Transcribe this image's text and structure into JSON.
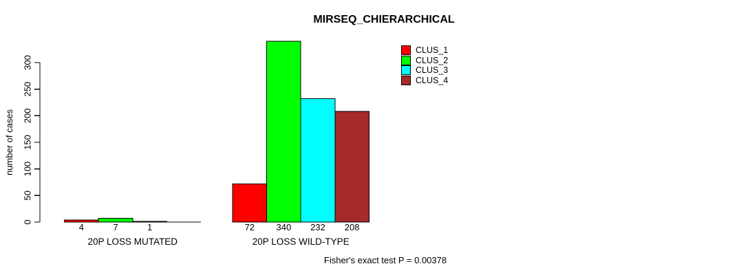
{
  "title": "MIRSEQ_CHIERARCHICAL",
  "footer": "Fisher's exact test P = 0.00378",
  "chart_data": {
    "type": "bar",
    "title": "MIRSEQ_CHIERARCHICAL",
    "ylabel": "number of cases",
    "xlabel": "",
    "ylim": [
      0,
      300
    ],
    "yticks": [
      0,
      50,
      100,
      150,
      200,
      250,
      300
    ],
    "grid": false,
    "legend_position": "top-right",
    "categories": [
      "20P LOSS MUTATED",
      "20P LOSS WILD-TYPE"
    ],
    "series": [
      {
        "name": "CLUS_1",
        "color": "#ff0000",
        "values": [
          4,
          72
        ]
      },
      {
        "name": "CLUS_2",
        "color": "#00ff00",
        "values": [
          7,
          340
        ]
      },
      {
        "name": "CLUS_3",
        "color": "#00ffff",
        "values": [
          1,
          232
        ]
      },
      {
        "name": "CLUS_4",
        "color": "#a52a2a",
        "values": [
          0,
          208
        ]
      }
    ],
    "bar_value_labels": [
      [
        "4",
        "7",
        "1",
        ""
      ],
      [
        "72",
        "340",
        "232",
        "208"
      ]
    ],
    "annotation": "Fisher's exact test P = 0.00378"
  }
}
